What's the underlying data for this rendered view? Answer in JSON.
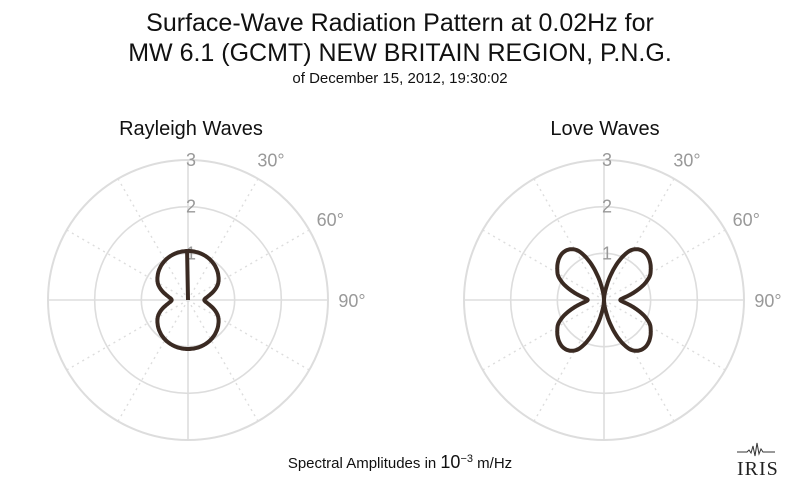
{
  "title": {
    "line1": "Surface-Wave Radiation Pattern at 0.02Hz for",
    "line2": "MW 6.1 (GCMT) NEW BRITAIN REGION, P.N.G.",
    "line3": "of December 15, 2012, 19:30:02"
  },
  "footer": {
    "prefix": "Spectral Amplitudes in ",
    "base": "10",
    "exponent": "−3",
    "unit": " m/Hz"
  },
  "logo": {
    "text": "IRIS"
  },
  "colors": {
    "curve": "#3a2a22",
    "grid": "#dddddd",
    "label": "#999999"
  },
  "chart_data": [
    {
      "type": "polar-line",
      "title": "Rayleigh Waves",
      "radial_ticks": [
        "1",
        "2",
        "3"
      ],
      "radial_range": [
        0,
        3
      ],
      "angle_ticks": [
        "30°",
        "60°",
        "90°"
      ],
      "grid": true,
      "series": [
        {
          "theta_deg": [
            0,
            30,
            60,
            90,
            120,
            150,
            180,
            210,
            240,
            270,
            300,
            330
          ],
          "r": [
            1.05,
            0.98,
            0.75,
            0.35,
            0.75,
            0.98,
            1.05,
            0.98,
            0.75,
            0.35,
            0.75,
            0.98
          ]
        }
      ]
    },
    {
      "type": "polar-line",
      "title": "Love Waves",
      "radial_ticks": [
        "1",
        "2",
        "3"
      ],
      "radial_range": [
        0,
        3
      ],
      "angle_ticks": [
        "30°",
        "60°",
        "90°"
      ],
      "grid": true,
      "series": [
        {
          "theta_deg": [
            0,
            30,
            60,
            90,
            120,
            150,
            180,
            210,
            240,
            270,
            300,
            330
          ],
          "r": [
            0.0,
            1.25,
            1.15,
            0.35,
            1.15,
            1.25,
            0.0,
            1.25,
            1.15,
            0.35,
            1.15,
            1.25
          ]
        }
      ]
    }
  ]
}
